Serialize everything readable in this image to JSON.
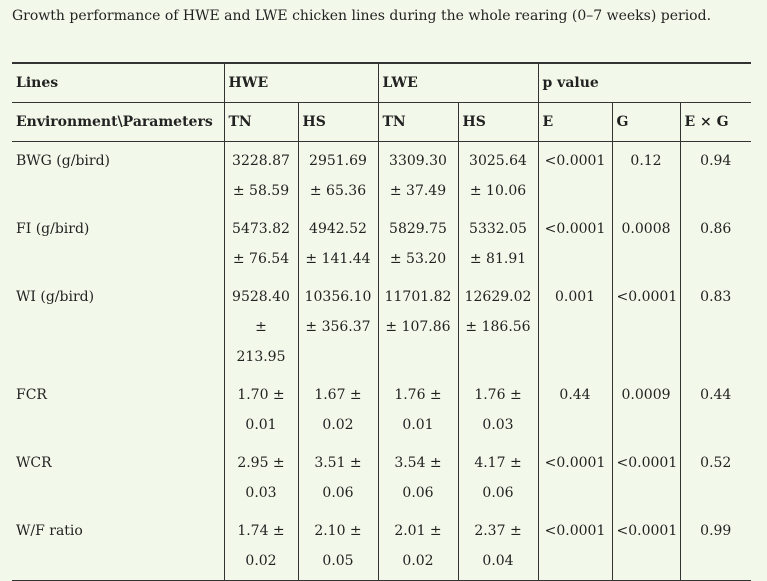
{
  "caption": "Growth performance of HWE and LWE chicken lines during the whole rearing (0–7 weeks) period.",
  "table": {
    "header_top": [
      "Lines",
      "HWE",
      "LWE",
      "p value"
    ],
    "header": [
      "Environment\\Parameters",
      "TN",
      "HS",
      "TN",
      "HS",
      "E",
      "G",
      "E × G"
    ],
    "rows": [
      [
        "BWG (g/bird)",
        "3228.87 ± 58.59",
        "2951.69 ± 65.36",
        "3309.30 ± 37.49",
        "3025.64 ± 10.06",
        "<0.0001",
        "0.12",
        "0.94"
      ],
      [
        "FI (g/bird)",
        "5473.82 ± 76.54",
        "4942.52 ± 141.44",
        "5829.75 ± 53.20",
        "5332.05 ± 81.91",
        "<0.0001",
        "0.0008",
        "0.86"
      ],
      [
        "WI (g/bird)",
        "9528.40 ± 213.95",
        "10356.10 ± 356.37",
        "11701.82 ± 107.86",
        "12629.02 ± 186.56",
        "0.001",
        "<0.0001",
        "0.83"
      ],
      [
        "FCR",
        "1.70 ± 0.01",
        "1.67 ± 0.02",
        "1.76 ± 0.01",
        "1.76 ± 0.03",
        "0.44",
        "0.0009",
        "0.44"
      ],
      [
        "WCR",
        "2.95 ± 0.03",
        "3.51 ± 0.06",
        "3.54 ± 0.06",
        "4.17 ± 0.06",
        "<0.0001",
        "<0.0001",
        "0.52"
      ],
      [
        "W/F ratio",
        "1.74 ± 0.02",
        "2.10 ± 0.05",
        "2.01 ± 0.02",
        "2.37 ± 0.04",
        "<0.0001",
        "<0.0001",
        "0.99"
      ]
    ]
  }
}
